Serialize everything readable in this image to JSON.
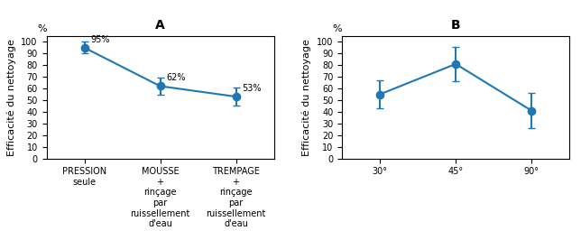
{
  "chart_data": [
    {
      "type": "line",
      "title": "A",
      "ylabel": "Efficacité du nettoyage",
      "ylabel_unit": "%",
      "categories": [
        "PRESSION\nseule",
        "MOUSSE\n+\nrinçage\npar\nruissellement\nd'eau",
        "TREMPAGE\n+\nrinçage\npar\nruissellement\nd'eau"
      ],
      "values": [
        95,
        62,
        53
      ],
      "errors": [
        5,
        7,
        8
      ],
      "data_labels": true,
      "value_labels": [
        "95%",
        "62%",
        "53%"
      ],
      "marker": "o",
      "ylim": [
        0,
        105
      ],
      "yticks": [
        0,
        10,
        20,
        30,
        40,
        50,
        60,
        70,
        80,
        90,
        100
      ]
    },
    {
      "type": "line",
      "title": "B",
      "ylabel": "Efficacité du nettoyage",
      "ylabel_unit": "%",
      "categories": [
        "30°",
        "45°",
        "90°"
      ],
      "values": [
        55,
        81,
        41
      ],
      "errors": [
        12,
        15,
        15
      ],
      "marker": "o",
      "ylim": [
        0,
        105
      ],
      "yticks": [
        0,
        10,
        20,
        30,
        40,
        50,
        60,
        70,
        80,
        90,
        100
      ]
    }
  ]
}
